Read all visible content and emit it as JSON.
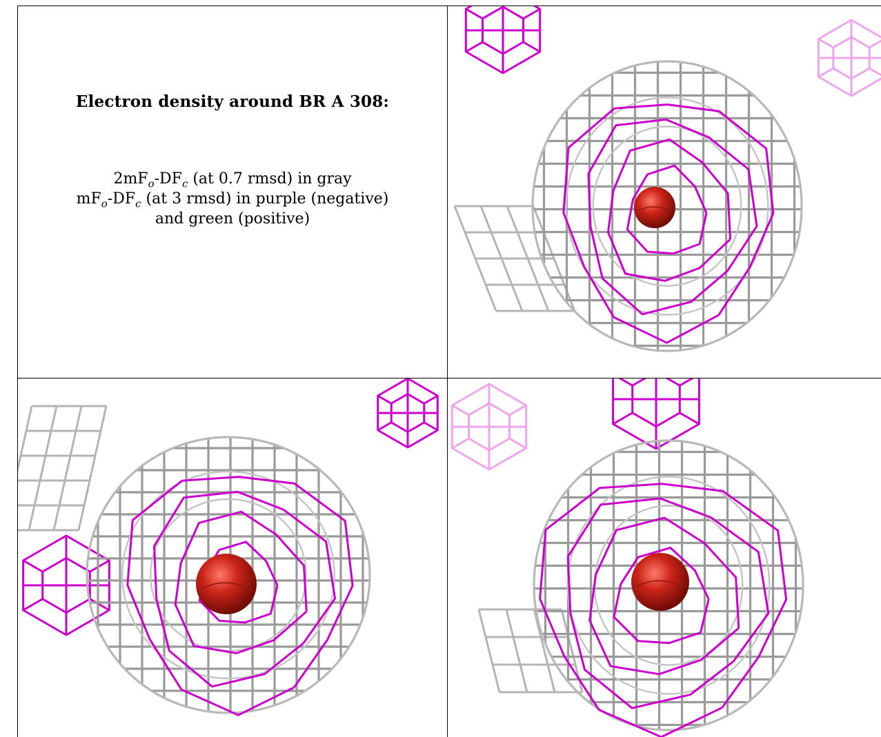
{
  "caption": {
    "title": "Electron density around BR A 308:",
    "line1": {
      "pre": "2mF",
      "sub1": "o",
      "mid": "-DF",
      "sub2": "c",
      "post": " (at 0.7 rmsd) in gray"
    },
    "line2": {
      "pre": "mF",
      "sub1": "o",
      "mid": "-DF",
      "sub2": "c",
      "post": " (at 3 rmsd) in purple (negative)"
    },
    "line3": "and green (positive)"
  },
  "colors": {
    "mesh_2fofc": "#9a9a9a",
    "mesh_fofc_negative": "#cc00cc",
    "atom": "#cc2418",
    "rule": "#000000"
  },
  "panels": [
    {
      "name": "view-top-right"
    },
    {
      "name": "view-bottom-left"
    },
    {
      "name": "view-bottom-right"
    }
  ]
}
